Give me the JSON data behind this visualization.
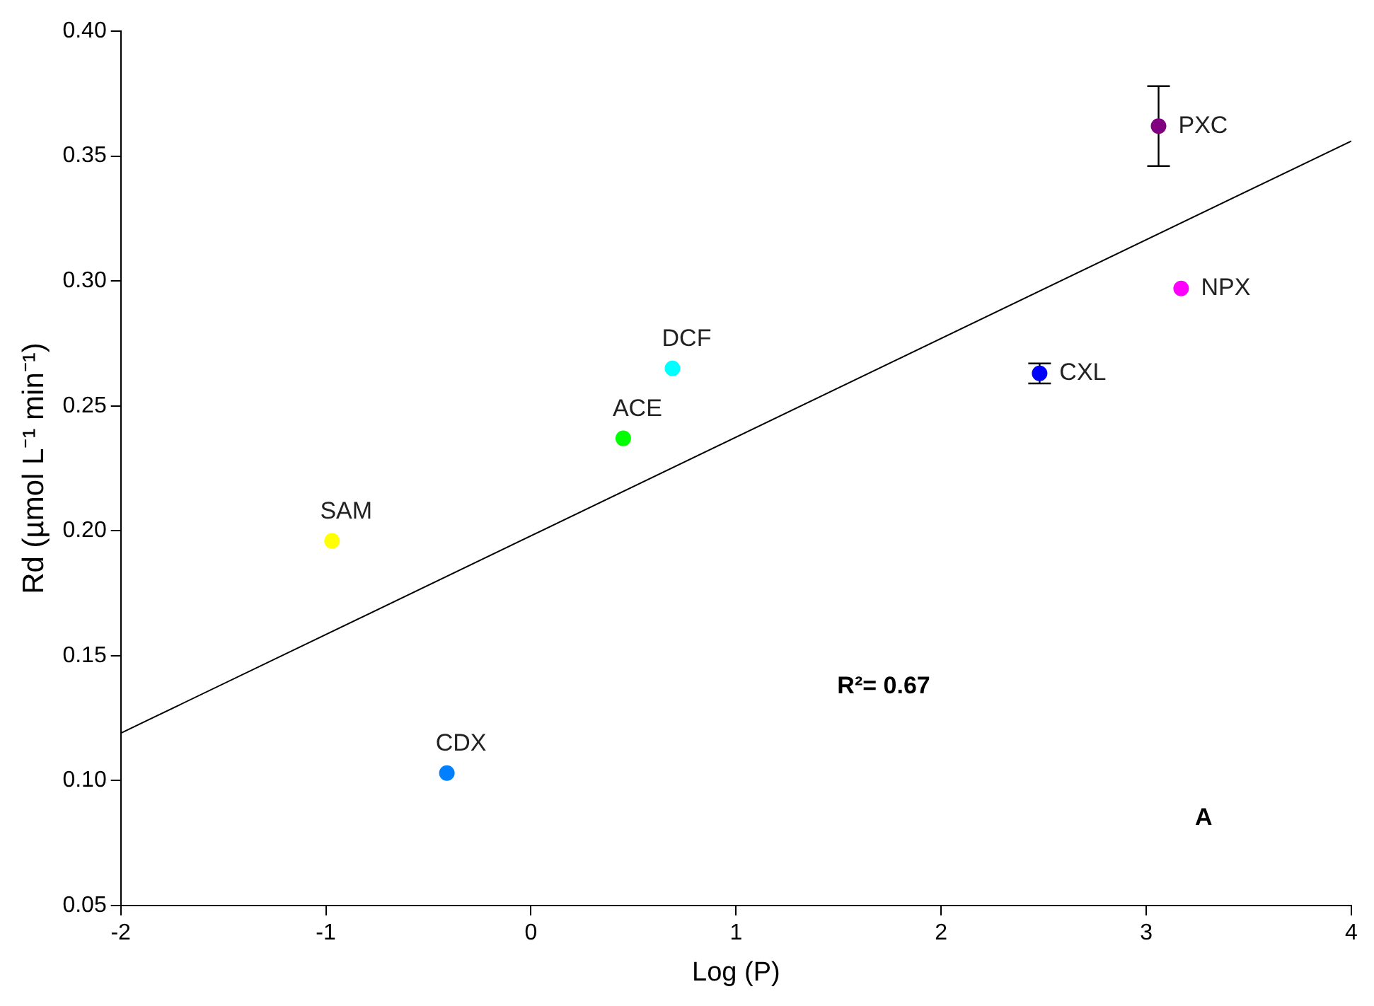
{
  "chart_data": {
    "type": "scatter",
    "xlabel": "Log (P)",
    "ylabel": "Rd (µmol L⁻¹ min⁻¹)",
    "xlim": [
      -2,
      4
    ],
    "xticks": [
      -2,
      -1,
      0,
      1,
      2,
      3,
      4
    ],
    "ylim": [
      0.05,
      0.4
    ],
    "yticks": [
      0.05,
      {
        "value": 0.1,
        "label": "0.10"
      },
      0.15,
      {
        "value": 0.2,
        "label": "0.20"
      },
      0.25,
      {
        "value": 0.3,
        "label": "0.30"
      },
      0.35,
      {
        "value": 0.4,
        "label": "0.40"
      }
    ],
    "grid": false,
    "legend": false,
    "marker": "circle",
    "annotations": [
      "R²= 0.67",
      "A"
    ],
    "series": [
      {
        "name": "SAM",
        "color": "#ffff00",
        "x": [
          -0.97
        ],
        "values": [
          0.196
        ]
      },
      {
        "name": "CDX",
        "color": "#0080ff",
        "x": [
          -0.41
        ],
        "values": [
          0.103
        ]
      },
      {
        "name": "ACE",
        "color": "#00ff00",
        "x": [
          0.45
        ],
        "values": [
          0.237
        ]
      },
      {
        "name": "DCF",
        "color": "#00ffff",
        "x": [
          0.69
        ],
        "values": [
          0.265
        ]
      },
      {
        "name": "CXL",
        "color": "#0000ff",
        "x": [
          2.48
        ],
        "values": [
          0.263
        ],
        "errors": [
          0.004
        ]
      },
      {
        "name": "PXC",
        "color": "#800080",
        "x": [
          3.06
        ],
        "values": [
          0.362
        ],
        "errors": [
          0.016
        ]
      },
      {
        "name": "NPX",
        "color": "#ff00ff",
        "x": [
          3.17
        ],
        "values": [
          0.297
        ]
      },
      {
        "type": "line",
        "color": "#000000",
        "x": [
          -2,
          4
        ],
        "values": [
          0.119,
          0.356
        ],
        "marker": "none",
        "line_style": "solid"
      }
    ]
  }
}
